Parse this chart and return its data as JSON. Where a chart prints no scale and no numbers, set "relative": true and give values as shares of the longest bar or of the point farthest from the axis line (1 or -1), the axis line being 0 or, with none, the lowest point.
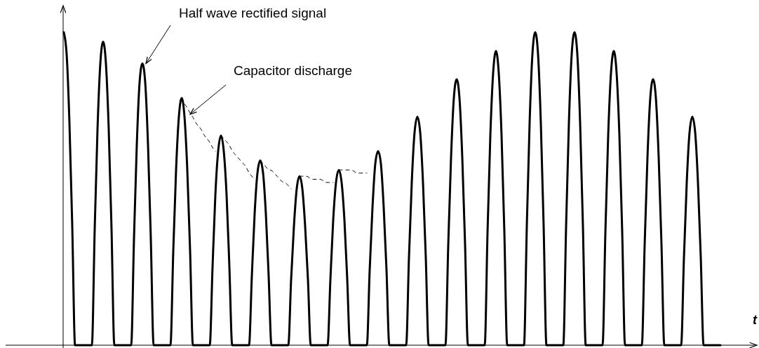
{
  "chart_data": {
    "type": "line",
    "relative": true,
    "xlabel": "t",
    "annotations": [
      "Half wave rectified signal",
      "Capacitor discharge"
    ],
    "categories": [
      null,
      null,
      null,
      null,
      null,
      null,
      null,
      null,
      null,
      null,
      null,
      null,
      null,
      null,
      null,
      null,
      null,
      null,
      null,
      null,
      null,
      null,
      null,
      null,
      null,
      null,
      null,
      null,
      null,
      null,
      null,
      null,
      null,
      null,
      null,
      null,
      null,
      null,
      null,
      null,
      null,
      null,
      null,
      null,
      null,
      null,
      null,
      null,
      null,
      null,
      null,
      null,
      null,
      null,
      null,
      null,
      null,
      null,
      null,
      null,
      null,
      null,
      null,
      null,
      null,
      null,
      null,
      null,
      null,
      null,
      null,
      null,
      null,
      null,
      null,
      null,
      null,
      null,
      null,
      null,
      null,
      null,
      null,
      null,
      null,
      null,
      null,
      null,
      null,
      null,
      null,
      null,
      null,
      null,
      null,
      null,
      null,
      null,
      null,
      null,
      null,
      null,
      null,
      null,
      null,
      null,
      null,
      null,
      null,
      null,
      null,
      null,
      null,
      null,
      null,
      null,
      null,
      null,
      null,
      null,
      null,
      null,
      null,
      null,
      null,
      null,
      null,
      null,
      null,
      null,
      null,
      null,
      null,
      null,
      null,
      null,
      null,
      null,
      null,
      null,
      null,
      null,
      null,
      null,
      null,
      null,
      null,
      null,
      null,
      null,
      null,
      null,
      null,
      null,
      null,
      null,
      null,
      null,
      null,
      null,
      null,
      null,
      null,
      null,
      null,
      null,
      null,
      null,
      null,
      null,
      null,
      null,
      null,
      null,
      null,
      null,
      null,
      null,
      null,
      null,
      null,
      null,
      null,
      null,
      null,
      null,
      null,
      null,
      null,
      null,
      null,
      null,
      null,
      null,
      null,
      null,
      null,
      null,
      null,
      null,
      null,
      null,
      null,
      null,
      null,
      null,
      null,
      null,
      null,
      null,
      null,
      null,
      null,
      null,
      null,
      null,
      null,
      null,
      null,
      null,
      null,
      null,
      null,
      null,
      null,
      null,
      null,
      null,
      null,
      null,
      null,
      null,
      null,
      null,
      null
    ],
    "series": [
      {
        "color": "#000000",
        "line_style": "solid",
        "values": [
          1,
          0.93,
          0.71,
          0.38,
          0,
          0,
          0,
          0,
          0,
          0,
          0,
          0.37,
          0.69,
          0.9,
          0.97,
          0.9,
          0.69,
          0.37,
          0,
          0,
          0,
          0,
          0,
          0,
          0,
          0.34,
          0.64,
          0.84,
          0.9,
          0.84,
          0.64,
          0.34,
          0,
          0,
          0,
          0,
          0,
          0,
          0,
          0.3,
          0.56,
          0.73,
          0.79,
          0.73,
          0.56,
          0.3,
          0,
          0,
          0,
          0,
          0,
          0,
          0,
          0.25,
          0.48,
          0.62,
          0.67,
          0.62,
          0.48,
          0.25,
          0,
          0,
          0,
          0,
          0,
          0,
          0,
          0.22,
          0.42,
          0.55,
          0.59,
          0.55,
          0.42,
          0.22,
          0,
          0,
          0,
          0,
          0,
          0,
          0,
          0.21,
          0.38,
          0.5,
          0.54,
          0.5,
          0.38,
          0.21,
          0,
          0,
          0,
          0,
          0,
          0,
          0,
          0.21,
          0.4,
          0.52,
          0.56,
          0.52,
          0.4,
          0.21,
          0,
          0,
          0,
          0,
          0,
          0,
          0,
          0.24,
          0.44,
          0.58,
          0.62,
          0.58,
          0.44,
          0.24,
          0,
          0,
          0,
          0,
          0,
          0,
          0,
          0.28,
          0.52,
          0.68,
          0.73,
          0.68,
          0.52,
          0.28,
          0,
          0,
          0,
          0,
          0,
          0,
          0,
          0.32,
          0.6,
          0.79,
          0.85,
          0.79,
          0.6,
          0.32,
          0,
          0,
          0,
          0,
          0,
          0,
          0,
          0.36,
          0.67,
          0.87,
          0.94,
          0.87,
          0.67,
          0.36,
          0,
          0,
          0,
          0,
          0,
          0,
          0,
          0.38,
          0.71,
          0.93,
          1,
          0.93,
          0.71,
          0.38,
          0,
          0,
          0,
          0,
          0,
          0,
          0,
          0.38,
          0.71,
          0.93,
          1,
          0.93,
          0.71,
          0.38,
          0,
          0,
          0,
          0,
          0,
          0,
          0,
          0.36,
          0.67,
          0.87,
          0.94,
          0.87,
          0.67,
          0.36,
          0,
          0,
          0,
          0,
          0,
          0,
          0,
          0.32,
          0.6,
          0.79,
          0.85,
          0.79,
          0.6,
          0.32,
          0,
          0,
          0,
          0,
          0,
          0,
          0,
          0.28,
          0.52,
          0.68,
          0.73,
          0.68,
          0.52,
          0.28,
          0,
          0,
          0,
          0,
          0,
          0,
          0
        ]
      },
      {
        "color": "#000000",
        "line_style": "dashed",
        "values": [
          null,
          null,
          null,
          null,
          null,
          null,
          null,
          null,
          null,
          null,
          null,
          null,
          null,
          null,
          null,
          null,
          null,
          null,
          null,
          null,
          null,
          null,
          null,
          null,
          null,
          null,
          null,
          null,
          null,
          null,
          null,
          null,
          null,
          null,
          null,
          null,
          null,
          null,
          null,
          null,
          null,
          null,
          0.79,
          0.77,
          0.76,
          0.74,
          0.73,
          0.71,
          0.7,
          0.69,
          0.67,
          0.66,
          0.65,
          0.63,
          0.62,
          null,
          0.67,
          0.66,
          0.65,
          0.64,
          0.62,
          0.61,
          0.6,
          0.59,
          0.58,
          0.57,
          0.55,
          0.54,
          0.53,
          null,
          0.59,
          0.58,
          0.57,
          0.56,
          0.56,
          0.55,
          0.54,
          0.53,
          0.52,
          0.52,
          0.51,
          0.5,
          null,
          null,
          0.54,
          0.54,
          0.54,
          0.54,
          0.53,
          0.53,
          0.53,
          0.53,
          0.53,
          0.52,
          0.52,
          0.52,
          0.52,
          null,
          0.56,
          0.56,
          0.56,
          0.56,
          0.56,
          0.56,
          0.55,
          0.55,
          0.55,
          0.55,
          0.55,
          null,
          null,
          null,
          null,
          null,
          null,
          null,
          null,
          null,
          null,
          null,
          null,
          null,
          null,
          null,
          null,
          null,
          null,
          null,
          null,
          null,
          null,
          null,
          null,
          null,
          null,
          null,
          null,
          null,
          null,
          null,
          null,
          null,
          null,
          null,
          null,
          null,
          null,
          null,
          null,
          null,
          null,
          null,
          null,
          null,
          null,
          null,
          null,
          null,
          null,
          null,
          null,
          null,
          null,
          null,
          null,
          null,
          null,
          null,
          null,
          null,
          null,
          null,
          null,
          null,
          null,
          null,
          null,
          null,
          null,
          null,
          null,
          null,
          null,
          null,
          null,
          null,
          null,
          null,
          null,
          null,
          null,
          null,
          null,
          null,
          null,
          null,
          null,
          null,
          null,
          null,
          null,
          null,
          null,
          null,
          null,
          null,
          null,
          null,
          null,
          null,
          null,
          null,
          null,
          null,
          null,
          null,
          null,
          null,
          null,
          null,
          null,
          null,
          null,
          null,
          null,
          null,
          null,
          null,
          null,
          null,
          null,
          null,
          null,
          null,
          null
        ]
      }
    ]
  }
}
